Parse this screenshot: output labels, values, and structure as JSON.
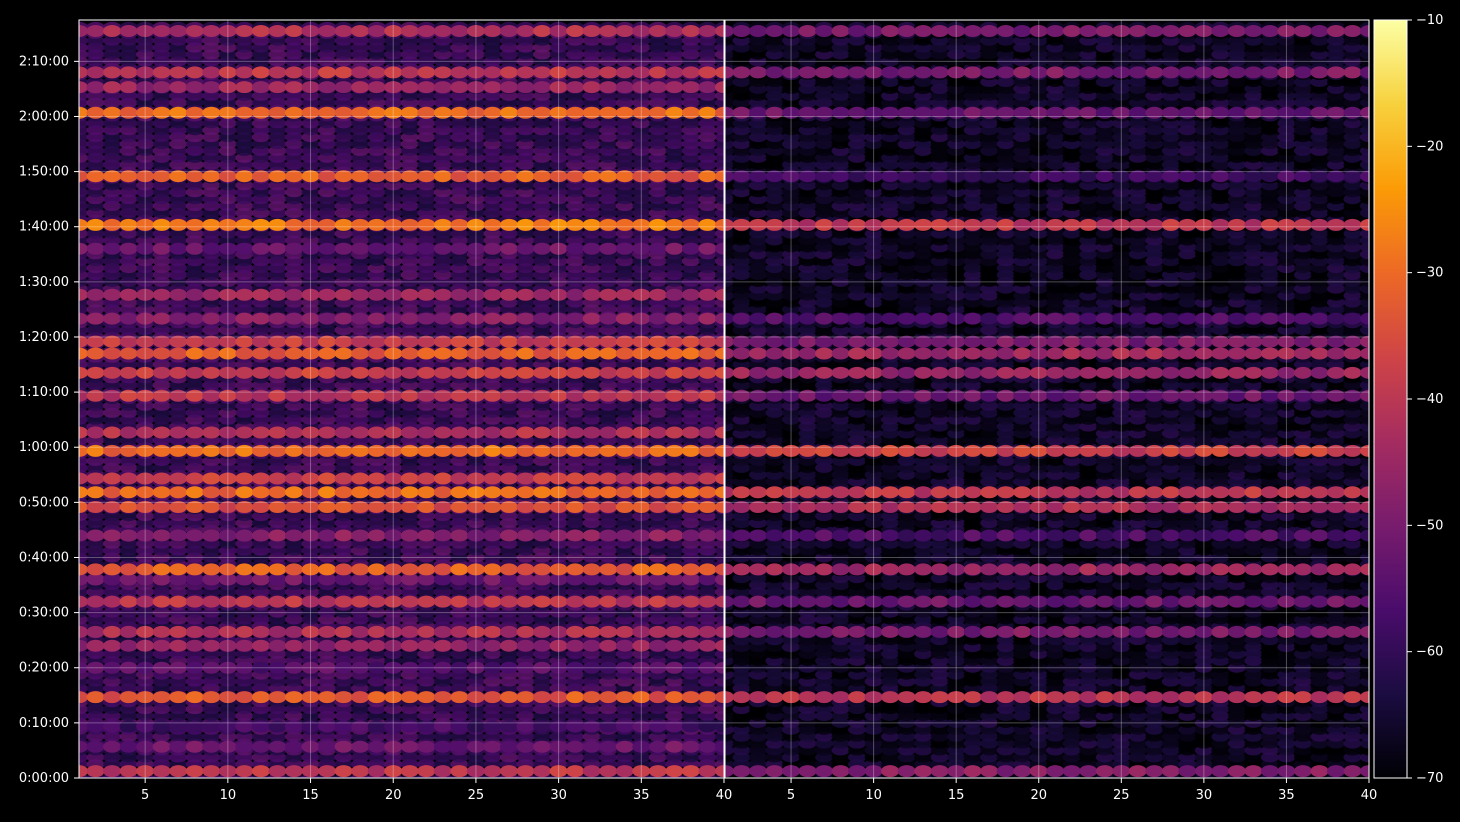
{
  "chart_data": [
    {
      "type": "heatmap",
      "panel": "left",
      "colormap": "inferno",
      "x_ticks": [
        5,
        10,
        15,
        20,
        25,
        30,
        35,
        40
      ],
      "x_tick_labels": [
        "5",
        "10",
        "15",
        "20",
        "25",
        "30",
        "35",
        "40"
      ],
      "xlim": [
        1,
        40
      ],
      "y_ticks_seconds": [
        0,
        600,
        1200,
        1800,
        2400,
        3000,
        3600,
        4200,
        4800,
        5400,
        6000,
        6600,
        7200,
        7800
      ],
      "y_tick_labels": [
        "0:00:00",
        "0:10:00",
        "0:20:00",
        "0:30:00",
        "0:40:00",
        "0:50:00",
        "1:00:00",
        "1:10:00",
        "1:20:00",
        "1:30:00",
        "1:40:00",
        "1:50:00",
        "2:00:00",
        "2:10:00"
      ],
      "ylim_seconds": [
        0,
        8250
      ],
      "grid": true,
      "xlabel": "",
      "ylabel": "",
      "bands": [
        {
          "t": 75,
          "level": -40
        },
        {
          "t": 340,
          "level": -52
        },
        {
          "t": 560,
          "level": -58
        },
        {
          "t": 880,
          "level": -33
        },
        {
          "t": 1200,
          "level": -55
        },
        {
          "t": 1440,
          "level": -46
        },
        {
          "t": 1590,
          "level": -42
        },
        {
          "t": 1920,
          "level": -40
        },
        {
          "t": 2160,
          "level": -52
        },
        {
          "t": 2270,
          "level": -32
        },
        {
          "t": 2640,
          "level": -48
        },
        {
          "t": 2950,
          "level": -35
        },
        {
          "t": 3110,
          "level": -30
        },
        {
          "t": 3260,
          "level": -38
        },
        {
          "t": 3560,
          "level": -30
        },
        {
          "t": 3760,
          "level": -42
        },
        {
          "t": 4160,
          "level": -40
        },
        {
          "t": 4410,
          "level": -38
        },
        {
          "t": 4620,
          "level": -32
        },
        {
          "t": 4750,
          "level": -38
        },
        {
          "t": 5000,
          "level": -48
        },
        {
          "t": 5260,
          "level": -45
        },
        {
          "t": 5760,
          "level": -52
        },
        {
          "t": 6020,
          "level": -28
        },
        {
          "t": 6550,
          "level": -32
        },
        {
          "t": 7240,
          "level": -30
        },
        {
          "t": 7520,
          "level": -45
        },
        {
          "t": 7680,
          "level": -40
        },
        {
          "t": 8130,
          "level": -42
        }
      ]
    },
    {
      "type": "heatmap",
      "panel": "right",
      "colormap": "inferno",
      "x_ticks": [
        5,
        10,
        15,
        20,
        25,
        30,
        35,
        40
      ],
      "x_tick_labels": [
        "5",
        "10",
        "15",
        "20",
        "25",
        "30",
        "35",
        "40"
      ],
      "xlim": [
        1,
        40
      ],
      "ylim_seconds": [
        0,
        8250
      ],
      "grid": true,
      "xlabel": "",
      "ylabel": "",
      "bands": [
        {
          "t": 75,
          "level": -48
        },
        {
          "t": 880,
          "level": -40
        },
        {
          "t": 1590,
          "level": -50
        },
        {
          "t": 1920,
          "level": -52
        },
        {
          "t": 2270,
          "level": -45
        },
        {
          "t": 2640,
          "level": -56
        },
        {
          "t": 2950,
          "level": -42
        },
        {
          "t": 3110,
          "level": -40
        },
        {
          "t": 3560,
          "level": -38
        },
        {
          "t": 4160,
          "level": -52
        },
        {
          "t": 4410,
          "level": -46
        },
        {
          "t": 4620,
          "level": -44
        },
        {
          "t": 4750,
          "level": -50
        },
        {
          "t": 5000,
          "level": -56
        },
        {
          "t": 6020,
          "level": -40
        },
        {
          "t": 6550,
          "level": -58
        },
        {
          "t": 7240,
          "level": -52
        },
        {
          "t": 7680,
          "level": -50
        },
        {
          "t": 8130,
          "level": -50
        }
      ]
    }
  ],
  "colorbar": {
    "range": [
      -70,
      -10
    ],
    "ticks": [
      -10,
      -20,
      -30,
      -40,
      -50,
      -60,
      -70
    ],
    "tick_labels": [
      "−10",
      "−20",
      "−30",
      "−40",
      "−50",
      "−60",
      "−70"
    ],
    "stops": [
      "#000004",
      "#1b0c41",
      "#4a0c6b",
      "#781c6d",
      "#a52c60",
      "#cf4446",
      "#ed6925",
      "#fb9b06",
      "#f7d13d",
      "#fcffa4"
    ]
  }
}
